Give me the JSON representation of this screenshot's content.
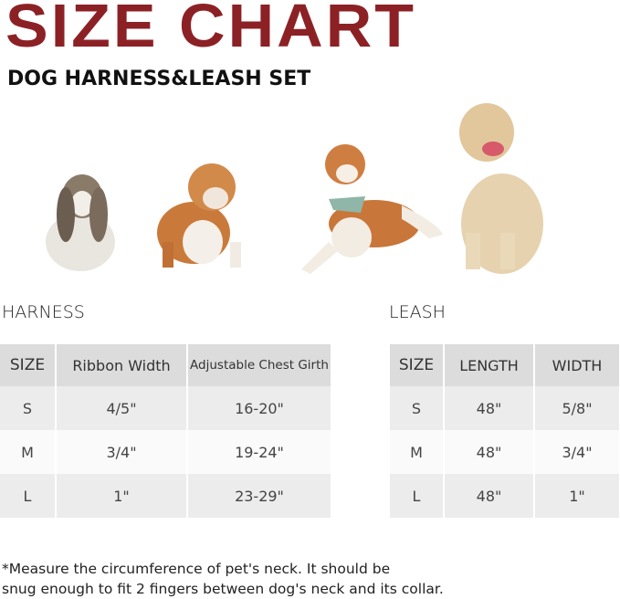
{
  "title": "SIZE CHART",
  "subtitle": "DOG HARNESS&LEASH SET",
  "colors": {
    "title": "#8c2125",
    "header_bg": "#dcdcdc",
    "row_bg": "#ececec"
  },
  "harness": {
    "label": "HARNESS",
    "headers": [
      "SIZE",
      "Ribbon Width",
      "Adjustable Chest Girth"
    ],
    "rows": [
      [
        "S",
        "4/5\"",
        "16-20\""
      ],
      [
        "M",
        "3/4\"",
        "19-24\""
      ],
      [
        "L",
        "1\"",
        "23-29\""
      ]
    ]
  },
  "leash": {
    "label": "LEASH",
    "headers": [
      "SIZE",
      "LENGTH",
      "WIDTH"
    ],
    "rows": [
      [
        "S",
        "48\"",
        "5/8\""
      ],
      [
        "M",
        "48\"",
        "3/4\""
      ],
      [
        "L",
        "48\"",
        "1\""
      ]
    ]
  },
  "note": {
    "line1": "*Measure the circumference of pet's neck. It should be",
    "line2": "snug enough to fit 2 fingers between dog's neck and its collar."
  }
}
